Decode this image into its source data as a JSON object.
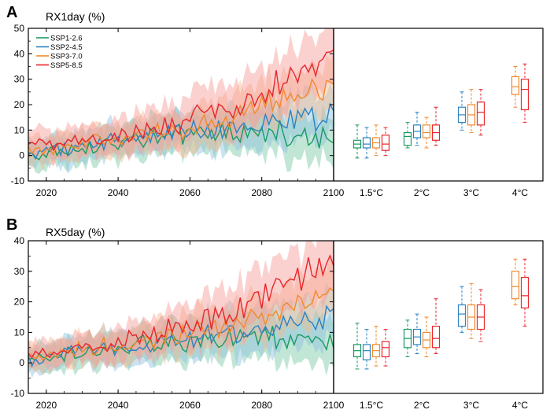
{
  "colors": {
    "ssp126": "#1a9a62",
    "ssp245": "#2c82c2",
    "ssp370": "#f08a2c",
    "ssp585": "#e8252b",
    "ssp126_fill": "#76c7a5",
    "ssp245_fill": "#8cc0e0",
    "ssp370_fill": "#f7b98a",
    "ssp585_fill": "#f79a96"
  },
  "chart_data": [
    {
      "panel": "A",
      "type": "line",
      "title": "RX1day (%)",
      "x_range": [
        2015,
        2100
      ],
      "ylim": [
        -10,
        50
      ],
      "yticks": [
        -10,
        0,
        10,
        20,
        30,
        40,
        50
      ],
      "xticks": [
        2020,
        2040,
        2060,
        2080
      ],
      "box_categories": [
        "2100",
        "1.5°C",
        "2°C",
        "3°C",
        "4°C"
      ],
      "legend": [
        "SSP1-2.6",
        "SSP2-4.5",
        "SSP3-7.0",
        "SSP5-8.5"
      ],
      "legend_position": "top-left",
      "series_trend": [
        {
          "name": "SSP1-2.6",
          "key": "ssp126",
          "x": [
            2015,
            2050,
            2070,
            2100
          ],
          "y": [
            0,
            7,
            9,
            8
          ],
          "spread": [
            5,
            7,
            8,
            9
          ]
        },
        {
          "name": "SSP2-4.5",
          "key": "ssp245",
          "x": [
            2015,
            2050,
            2070,
            2100
          ],
          "y": [
            1,
            8,
            11,
            15
          ],
          "spread": [
            5,
            7,
            8,
            9
          ]
        },
        {
          "name": "SSP3-7.0",
          "key": "ssp370",
          "x": [
            2015,
            2050,
            2070,
            2100
          ],
          "y": [
            2,
            9,
            14,
            28
          ],
          "spread": [
            5,
            7,
            9,
            10
          ]
        },
        {
          "name": "SSP5-8.5",
          "key": "ssp585",
          "x": [
            2015,
            2050,
            2070,
            2100
          ],
          "y": [
            3,
            10,
            18,
            40
          ],
          "spread": [
            5,
            8,
            10,
            12
          ]
        }
      ],
      "boxplots": [
        {
          "group": "1.5°C",
          "items": [
            {
              "key": "ssp126",
              "whisker": [
                -1,
                12
              ],
              "box": [
                3,
                6
              ],
              "median": 4.5
            },
            {
              "key": "ssp245",
              "whisker": [
                -1,
                11
              ],
              "box": [
                3,
                7
              ],
              "median": 4.5
            },
            {
              "key": "ssp370",
              "whisker": [
                0,
                12
              ],
              "box": [
                3,
                7
              ],
              "median": 5
            },
            {
              "key": "ssp585",
              "whisker": [
                0,
                11
              ],
              "box": [
                2,
                8
              ],
              "median": 4.5
            }
          ]
        },
        {
          "group": "2°C",
          "items": [
            {
              "key": "ssp126",
              "whisker": [
                3,
                13
              ],
              "box": [
                4,
                9
              ],
              "median": 7.5
            },
            {
              "key": "ssp245",
              "whisker": [
                4,
                17
              ],
              "box": [
                7,
                12
              ],
              "median": 9.5
            },
            {
              "key": "ssp370",
              "whisker": [
                3,
                15
              ],
              "box": [
                7,
                12
              ],
              "median": 9
            },
            {
              "key": "ssp585",
              "whisker": [
                4,
                19
              ],
              "box": [
                6,
                12
              ],
              "median": 9
            }
          ]
        },
        {
          "group": "3°C",
          "items": [
            {
              "key": "ssp245",
              "whisker": [
                10,
                25
              ],
              "box": [
                13,
                19
              ],
              "median": 16
            },
            {
              "key": "ssp370",
              "whisker": [
                9,
                26
              ],
              "box": [
                12,
                20
              ],
              "median": 16
            },
            {
              "key": "ssp585",
              "whisker": [
                8,
                26
              ],
              "box": [
                12,
                21
              ],
              "median": 17
            }
          ]
        },
        {
          "group": "4°C",
          "items": [
            {
              "key": "ssp370",
              "whisker": [
                19,
                35
              ],
              "box": [
                24,
                31
              ],
              "median": 27
            },
            {
              "key": "ssp585",
              "whisker": [
                13,
                36
              ],
              "box": [
                18,
                30
              ],
              "median": 26
            }
          ]
        }
      ]
    },
    {
      "panel": "B",
      "type": "line",
      "title": "RX5day (%)",
      "x_range": [
        2015,
        2100
      ],
      "ylim": [
        -10,
        40
      ],
      "yticks": [
        -10,
        0,
        10,
        20,
        30,
        40
      ],
      "xticks": [
        2020,
        2040,
        2060,
        2080
      ],
      "box_categories": [
        "2100",
        "1.5°C",
        "2°C",
        "3°C",
        "4°C"
      ],
      "series_trend": [
        {
          "name": "SSP1-2.6",
          "key": "ssp126",
          "x": [
            2015,
            2050,
            2070,
            2100
          ],
          "y": [
            1,
            6,
            8,
            7
          ],
          "spread": [
            4,
            6,
            7,
            8
          ]
        },
        {
          "name": "SSP2-4.5",
          "key": "ssp245",
          "x": [
            2015,
            2050,
            2070,
            2100
          ],
          "y": [
            1,
            7,
            10,
            15
          ],
          "spread": [
            4,
            6,
            7,
            8
          ]
        },
        {
          "name": "SSP3-7.0",
          "key": "ssp370",
          "x": [
            2015,
            2050,
            2070,
            2100
          ],
          "y": [
            2,
            8,
            12,
            23
          ],
          "spread": [
            4,
            6,
            7,
            9
          ]
        },
        {
          "name": "SSP5-8.5",
          "key": "ssp585",
          "x": [
            2015,
            2050,
            2070,
            2100
          ],
          "y": [
            2,
            9,
            16,
            34
          ],
          "spread": [
            4,
            6,
            8,
            10
          ]
        }
      ],
      "boxplots": [
        {
          "group": "1.5°C",
          "items": [
            {
              "key": "ssp126",
              "whisker": [
                -2,
                13
              ],
              "box": [
                2,
                6
              ],
              "median": 4
            },
            {
              "key": "ssp245",
              "whisker": [
                -2,
                11
              ],
              "box": [
                1,
                6
              ],
              "median": 4
            },
            {
              "key": "ssp370",
              "whisker": [
                -1,
                12
              ],
              "box": [
                2,
                6
              ],
              "median": 4
            },
            {
              "key": "ssp585",
              "whisker": [
                -1,
                11
              ],
              "box": [
                2,
                7
              ],
              "median": 5
            }
          ]
        },
        {
          "group": "2°C",
          "items": [
            {
              "key": "ssp126",
              "whisker": [
                2,
                14
              ],
              "box": [
                5,
                11
              ],
              "median": 8
            },
            {
              "key": "ssp245",
              "whisker": [
                3,
                16
              ],
              "box": [
                6,
                11
              ],
              "median": 8.5
            },
            {
              "key": "ssp370",
              "whisker": [
                2,
                15
              ],
              "box": [
                5,
                10
              ],
              "median": 7.5
            },
            {
              "key": "ssp585",
              "whisker": [
                3,
                21
              ],
              "box": [
                5,
                12
              ],
              "median": 8
            }
          ]
        },
        {
          "group": "3°C",
          "items": [
            {
              "key": "ssp245",
              "whisker": [
                10,
                25
              ],
              "box": [
                12,
                19
              ],
              "median": 16
            },
            {
              "key": "ssp370",
              "whisker": [
                8,
                26
              ],
              "box": [
                11,
                19
              ],
              "median": 15
            },
            {
              "key": "ssp585",
              "whisker": [
                7,
                24
              ],
              "box": [
                11,
                19
              ],
              "median": 15
            }
          ]
        },
        {
          "group": "4°C",
          "items": [
            {
              "key": "ssp370",
              "whisker": [
                19,
                34
              ],
              "box": [
                21,
                30
              ],
              "median": 25
            },
            {
              "key": "ssp585",
              "whisker": [
                12,
                34
              ],
              "box": [
                18,
                28
              ],
              "median": 22
            }
          ]
        }
      ]
    }
  ]
}
